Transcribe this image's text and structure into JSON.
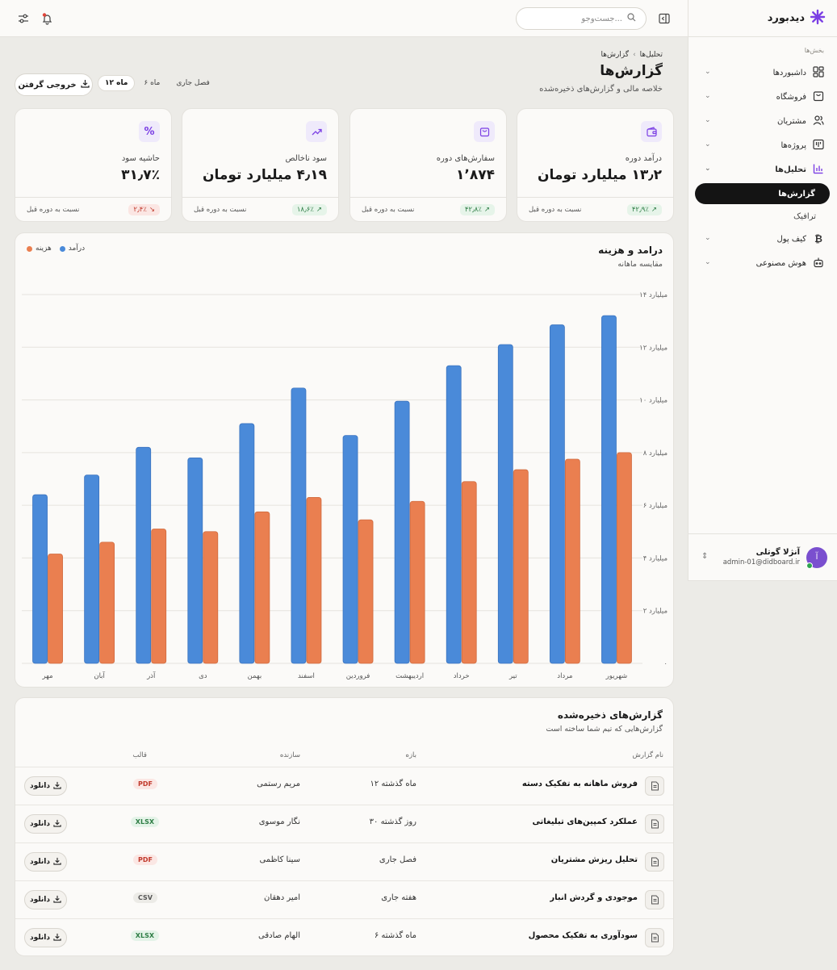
{
  "brand": {
    "name": "دیدبورد",
    "accent": "#7b3fe4"
  },
  "topbar": {
    "search_placeholder": "جست‌وجو..."
  },
  "sidebar": {
    "section_label": "بخش‌ها",
    "items": [
      {
        "label": "داشبوردها",
        "icon": "dashboard-icon"
      },
      {
        "label": "فروشگاه",
        "icon": "shop-icon"
      },
      {
        "label": "مشتریان",
        "icon": "users-icon"
      },
      {
        "label": "پروژه‌ها",
        "icon": "kanban-icon"
      },
      {
        "label": "تحلیل‌ها",
        "icon": "bar-chart-icon"
      },
      {
        "label": "کیف پول",
        "icon": "bitcoin-icon"
      },
      {
        "label": "هوش مصنوعی",
        "icon": "robot-icon"
      }
    ],
    "sub_items": [
      {
        "label": "گزارش‌ها"
      },
      {
        "label": "ترافیک"
      }
    ],
    "user": {
      "name": "آنژلا گوتلی",
      "email": "admin-01@didboard.ir",
      "initial": "آ"
    }
  },
  "header": {
    "breadcrumb": [
      "تحلیل‌ها",
      "گزارش‌ها"
    ],
    "title": "گزارش‌ها",
    "subtitle": "خلاصه مالی و گزارش‌های ذخیره‌شده",
    "periods": [
      "۱۲ ماه",
      "۶ ماه",
      "فصل جاری"
    ],
    "selected_period": "۱۲ ماه",
    "export_label": "خروجی گرفتن"
  },
  "kpis": [
    {
      "label": "درآمد دوره",
      "value": "۱۳٫۲ میلیارد تومان",
      "delta": "۴۲٫۹٪",
      "trend": "up",
      "foot": "نسبت به دوره قبل",
      "icon": "wallet-icon"
    },
    {
      "label": "سفارش‌های دوره",
      "value": "۱٬۸۷۴",
      "delta": "۴۲٫۸٪",
      "trend": "up",
      "foot": "نسبت به دوره قبل",
      "icon": "bag-icon"
    },
    {
      "label": "سود ناخالص",
      "value": "۴٫۱۹ میلیارد تومان",
      "delta": "۱۸٫۶٪",
      "trend": "up",
      "foot": "نسبت به دوره قبل",
      "icon": "trend-up-icon"
    },
    {
      "label": "حاشیه سود",
      "value": "۳۱٫۷٪",
      "delta": "۲٫۴٪",
      "trend": "down",
      "foot": "نسبت به دوره قبل",
      "icon": "percent-icon"
    }
  ],
  "chart_data": {
    "type": "bar",
    "title": "درامد و هزینه",
    "subtitle": "مقایسه ماهانه",
    "categories": [
      "مهر",
      "آبان",
      "آذر",
      "دی",
      "بهمن",
      "اسفند",
      "فروردین",
      "اردیبهشت",
      "خرداد",
      "تیر",
      "مرداد",
      "شهریور"
    ],
    "series": [
      {
        "name": "درآمد",
        "color": "#4a8ad9",
        "values": [
          6.4,
          7.15,
          8.2,
          7.8,
          9.1,
          10.45,
          8.65,
          9.95,
          11.3,
          12.1,
          12.85,
          13.2
        ]
      },
      {
        "name": "هزینه",
        "color": "#ea7f50",
        "values": [
          4.15,
          4.6,
          5.1,
          5.0,
          5.75,
          6.3,
          5.45,
          6.15,
          6.9,
          7.35,
          7.75,
          8.0
        ]
      }
    ],
    "ylim": [
      0,
      14
    ],
    "yticks": [
      {
        "v": 0,
        "label": "۰"
      },
      {
        "v": 2,
        "label": "۲ میلیارد"
      },
      {
        "v": 4,
        "label": "۴ میلیارد"
      },
      {
        "v": 6,
        "label": "۶ میلیارد"
      },
      {
        "v": 8,
        "label": "۸ میلیارد"
      },
      {
        "v": 10,
        "label": "۱۰ میلیارد"
      },
      {
        "v": 12,
        "label": "۱۲ میلیارد"
      },
      {
        "v": 14,
        "label": "۱۴ میلیارد"
      }
    ],
    "grid": true,
    "legend": "top-left"
  },
  "reports": {
    "title": "گزارش‌های ذخیره‌شده",
    "subtitle": "گزارش‌هایی که تیم شما ساخته است",
    "columns": {
      "name": "نام گزارش",
      "range": "بازه",
      "author": "سازنده",
      "format": "قالب"
    },
    "download_label": "دانلود",
    "rows": [
      {
        "name": "فروش ماهانه به تفکیک دسته",
        "range": "۱۲ ماه گذشته",
        "author": "مریم رستمی",
        "format": "PDF"
      },
      {
        "name": "عملکرد کمپین‌های تبلیغاتی",
        "range": "۳۰ روز گذشته",
        "author": "نگار موسوی",
        "format": "XLSX"
      },
      {
        "name": "تحلیل ریزش مشتریان",
        "range": "فصل جاری",
        "author": "سینا کاظمی",
        "format": "PDF"
      },
      {
        "name": "موجودی و گردش انبار",
        "range": "هفته جاری",
        "author": "امیر دهقان",
        "format": "CSV"
      },
      {
        "name": "سودآوری به تفکیک محصول",
        "range": "۶ ماه گذشته",
        "author": "الهام صادقی",
        "format": "XLSX"
      }
    ]
  }
}
